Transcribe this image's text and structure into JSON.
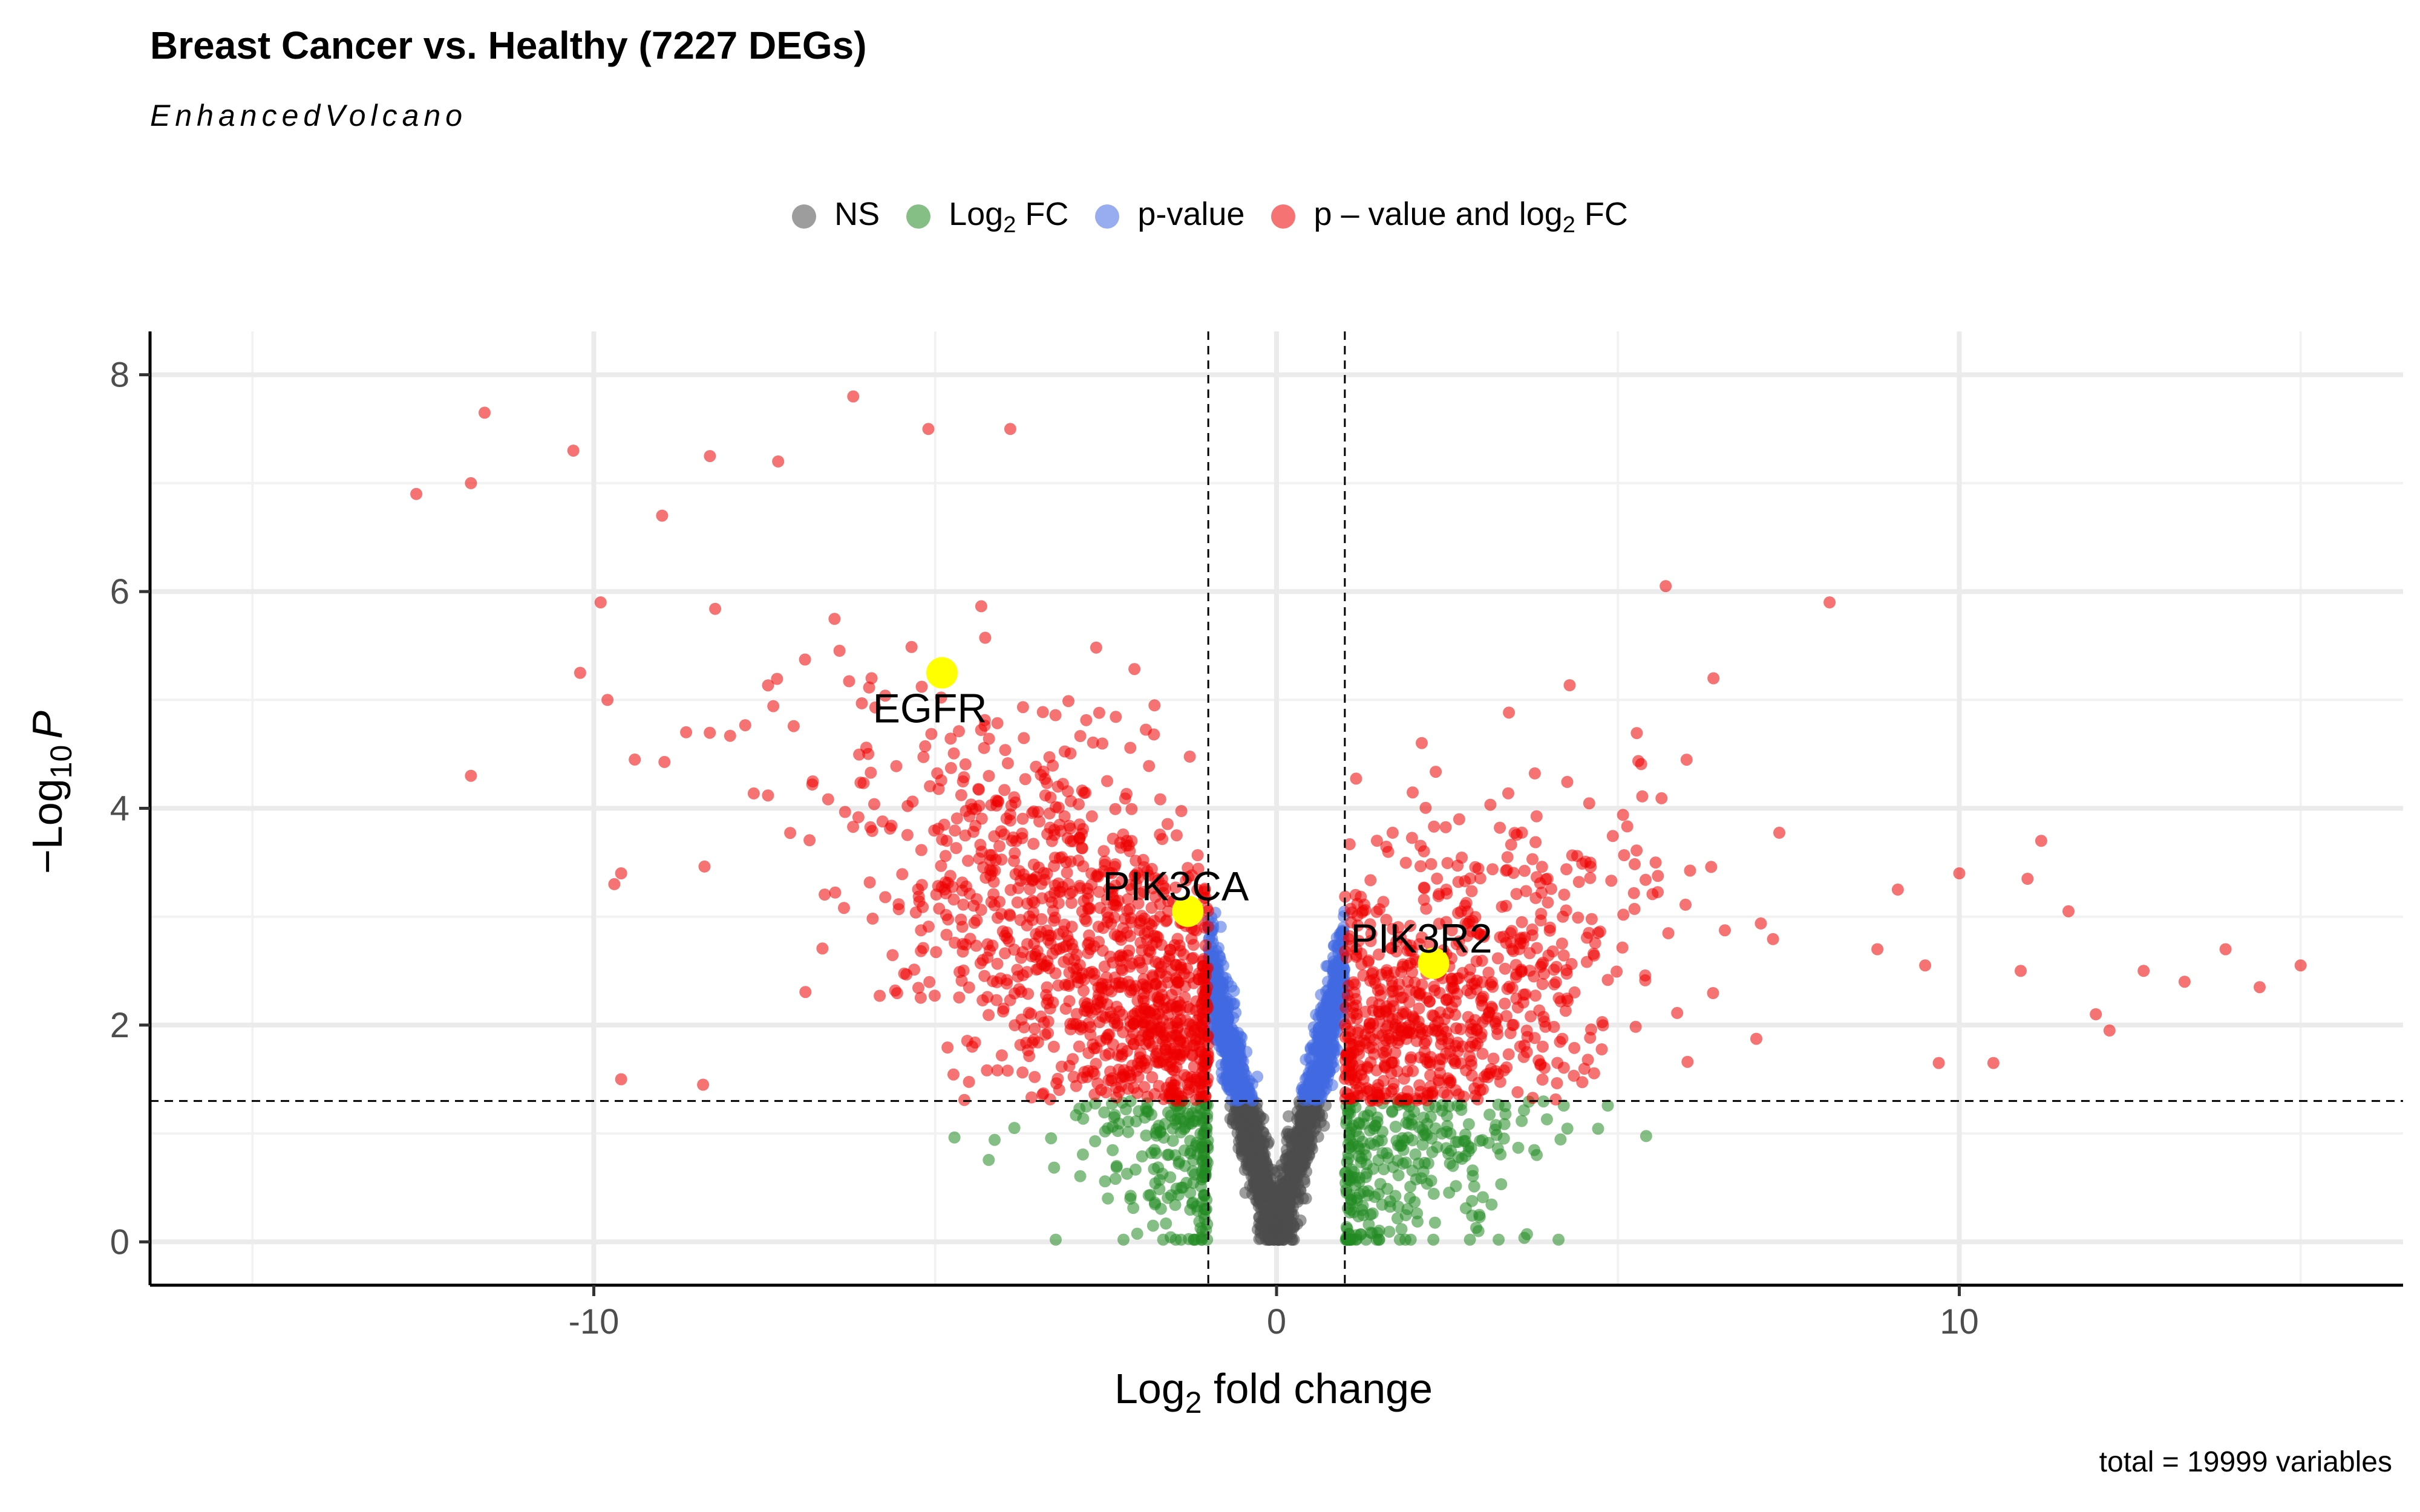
{
  "chart_data": {
    "type": "scatter",
    "title": "Breast Cancer vs. Healthy (7227 DEGs)",
    "subtitle": "EnhancedVolcano",
    "caption": "total = 19999 variables",
    "xlabel_main": "Log",
    "xlabel_sub": "2",
    "xlabel_rest": " fold change",
    "ylabel_main": "−Log",
    "ylabel_sub": "10",
    "ylabel_rest": "P",
    "xlim": [
      -16.5,
      16.5
    ],
    "ylim": [
      -0.4,
      8.4
    ],
    "x_ticks": [
      {
        "v": -10,
        "t": "-10"
      },
      {
        "v": 0,
        "t": "0"
      },
      {
        "v": 10,
        "t": "10"
      }
    ],
    "y_ticks": [
      {
        "v": 0,
        "t": "0"
      },
      {
        "v": 2,
        "t": "2"
      },
      {
        "v": 4,
        "t": "4"
      },
      {
        "v": 6,
        "t": "6"
      },
      {
        "v": 8,
        "t": "8"
      }
    ],
    "x_minor_ticks": [
      -15,
      -5,
      5,
      15
    ],
    "y_minor_ticks": [
      1,
      3,
      5,
      7
    ],
    "fc_cutoff": 1,
    "p_cutoff_log": 1.3,
    "grid": true,
    "legend_position": "top",
    "legend": [
      {
        "label": "NS",
        "sub": "",
        "rest": "",
        "color": "#4d4d4d"
      },
      {
        "label": "Log",
        "sub": "2",
        "rest": " FC",
        "color": "#228b22"
      },
      {
        "label": "p-value",
        "sub": "",
        "rest": "",
        "color": "#4169e1"
      },
      {
        "label": "p – value and log",
        "sub": "2",
        "rest": " FC",
        "color": "#ee0000"
      }
    ],
    "highlighted_genes": [
      {
        "gene": "EGFR",
        "x": -4.9,
        "y": 5.25
      },
      {
        "gene": "PIK3CA",
        "x": -1.3,
        "y": 3.05
      },
      {
        "gene": "PIK3R2",
        "x": 2.3,
        "y": 2.57
      }
    ],
    "outlier_points": [
      [
        -12.6,
        6.9
      ],
      [
        -11.8,
        7.0
      ],
      [
        -11.6,
        7.65
      ],
      [
        -10.3,
        7.3
      ],
      [
        -11.8,
        4.3
      ],
      [
        -9.9,
        5.9
      ],
      [
        -9.8,
        5.0
      ],
      [
        -9.4,
        4.45
      ],
      [
        -9.6,
        3.4
      ],
      [
        -9.7,
        3.3
      ],
      [
        -8.3,
        7.25
      ],
      [
        -7.3,
        7.2
      ],
      [
        -6.2,
        7.8
      ],
      [
        -5.1,
        7.5
      ],
      [
        -3.9,
        7.5
      ],
      [
        -9.6,
        1.5
      ],
      [
        -8.4,
        1.45
      ],
      [
        -10.2,
        5.25
      ],
      [
        -9.0,
        6.7
      ],
      [
        5.7,
        6.05
      ],
      [
        8.1,
        5.9
      ],
      [
        6.4,
        5.2
      ],
      [
        11.2,
        3.7
      ],
      [
        11.6,
        3.05
      ],
      [
        12.7,
        2.5
      ],
      [
        13.3,
        2.4
      ],
      [
        13.9,
        2.7
      ],
      [
        15.0,
        2.55
      ],
      [
        14.4,
        2.35
      ],
      [
        12.0,
        2.1
      ],
      [
        12.2,
        1.95
      ],
      [
        10.5,
        1.65
      ],
      [
        9.7,
        1.65
      ],
      [
        10.0,
        3.4
      ],
      [
        9.1,
        3.25
      ],
      [
        8.8,
        2.7
      ],
      [
        9.5,
        2.55
      ],
      [
        10.9,
        2.5
      ],
      [
        11.0,
        3.35
      ]
    ]
  }
}
